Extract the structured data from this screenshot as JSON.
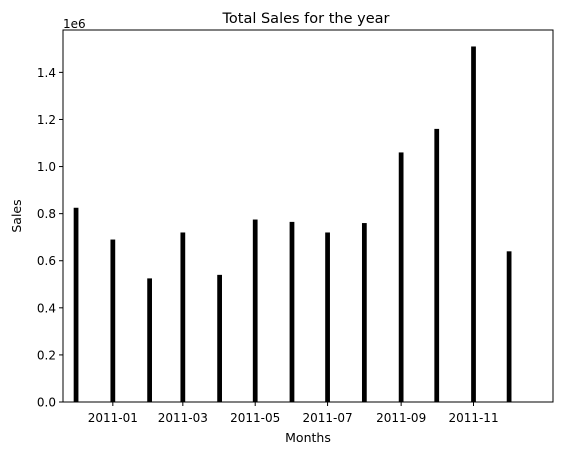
{
  "chart_data": {
    "type": "bar",
    "title": "Total Sales for the year",
    "xlabel": "Months",
    "ylabel": "Sales",
    "y_offset_label": "1e6",
    "ylim": [
      0,
      1.58
    ],
    "y_ticks": [
      0.0,
      0.2,
      0.4,
      0.6,
      0.8,
      1.0,
      1.2,
      1.4
    ],
    "y_tick_labels": [
      "0.0",
      "0.2",
      "0.4",
      "0.6",
      "0.8",
      "1.0",
      "1.2",
      "1.4"
    ],
    "x_range": [
      "2010-11-20",
      "2012-01-07"
    ],
    "x_ticks": [
      "2011-01-01",
      "2011-03-01",
      "2011-05-01",
      "2011-07-01",
      "2011-09-01",
      "2011-11-01"
    ],
    "x_tick_labels": [
      "2011-01",
      "2011-03",
      "2011-05",
      "2011-07",
      "2011-09",
      "2011-11"
    ],
    "bar_color": "#000000",
    "grid": false,
    "dates": [
      "2010-12-01",
      "2011-01-01",
      "2011-02-01",
      "2011-03-01",
      "2011-04-01",
      "2011-05-01",
      "2011-06-01",
      "2011-07-01",
      "2011-08-01",
      "2011-09-01",
      "2011-10-01",
      "2011-11-01",
      "2011-12-01"
    ],
    "values": [
      0.825,
      0.69,
      0.525,
      0.72,
      0.54,
      0.775,
      0.765,
      0.72,
      0.76,
      1.06,
      1.16,
      1.51,
      0.64
    ]
  }
}
